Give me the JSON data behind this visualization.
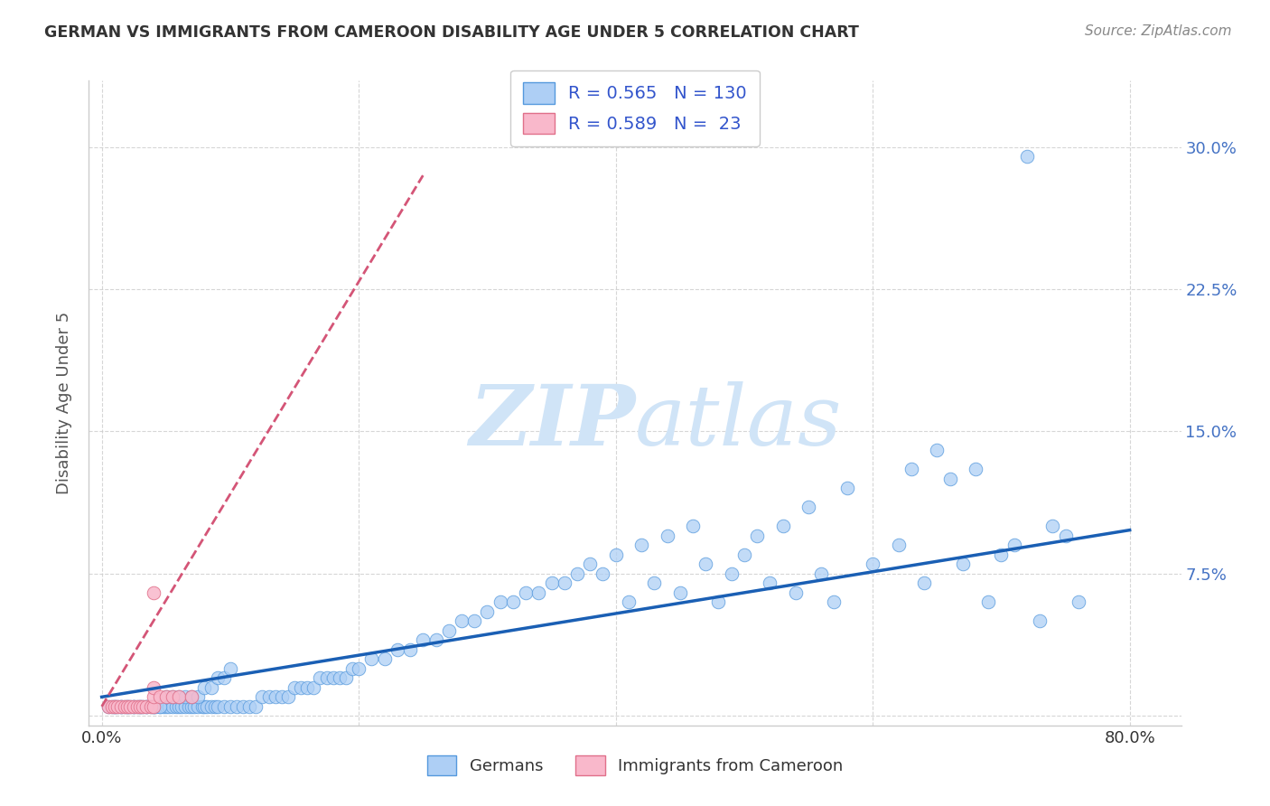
{
  "title": "GERMAN VS IMMIGRANTS FROM CAMEROON DISABILITY AGE UNDER 5 CORRELATION CHART",
  "source": "Source: ZipAtlas.com",
  "ylabel": "Disability Age Under 5",
  "xlim": [
    -0.01,
    0.84
  ],
  "ylim": [
    -0.005,
    0.335
  ],
  "xticks": [
    0.0,
    0.2,
    0.4,
    0.6,
    0.8
  ],
  "xticklabels": [
    "0.0%",
    "",
    "",
    "",
    "80.0%"
  ],
  "yticks": [
    0.0,
    0.075,
    0.15,
    0.225,
    0.3
  ],
  "yticklabels": [
    "",
    "7.5%",
    "15.0%",
    "22.5%",
    "30.0%"
  ],
  "german_R": 0.565,
  "german_N": 130,
  "cameroon_R": 0.589,
  "cameroon_N": 23,
  "german_color": "#aecff5",
  "german_edge_color": "#5599dd",
  "german_line_color": "#1a5fb4",
  "cameroon_color": "#f9b8cb",
  "cameroon_edge_color": "#e0708a",
  "cameroon_line_color": "#d45577",
  "watermark_color": "#d0e4f7",
  "background_color": "#ffffff",
  "grid_color": "#cccccc",
  "legend_text_color": "#3355cc",
  "title_color": "#333333",
  "source_color": "#888888",
  "ylabel_color": "#555555",
  "german_x": [
    0.005,
    0.008,
    0.01,
    0.012,
    0.015,
    0.018,
    0.02,
    0.022,
    0.025,
    0.028,
    0.03,
    0.032,
    0.035,
    0.038,
    0.04,
    0.042,
    0.045,
    0.048,
    0.05,
    0.052,
    0.055,
    0.058,
    0.06,
    0.062,
    0.065,
    0.068,
    0.07,
    0.072,
    0.075,
    0.078,
    0.08,
    0.082,
    0.085,
    0.088,
    0.09,
    0.095,
    0.1,
    0.105,
    0.11,
    0.115,
    0.12,
    0.125,
    0.13,
    0.135,
    0.14,
    0.145,
    0.15,
    0.155,
    0.16,
    0.165,
    0.17,
    0.175,
    0.18,
    0.185,
    0.19,
    0.195,
    0.2,
    0.21,
    0.22,
    0.23,
    0.24,
    0.25,
    0.26,
    0.27,
    0.28,
    0.29,
    0.3,
    0.31,
    0.32,
    0.33,
    0.34,
    0.35,
    0.36,
    0.37,
    0.38,
    0.39,
    0.4,
    0.41,
    0.42,
    0.43,
    0.44,
    0.45,
    0.46,
    0.47,
    0.48,
    0.49,
    0.5,
    0.51,
    0.52,
    0.53,
    0.54,
    0.55,
    0.56,
    0.57,
    0.58,
    0.6,
    0.62,
    0.63,
    0.64,
    0.65,
    0.66,
    0.67,
    0.68,
    0.69,
    0.7,
    0.71,
    0.72,
    0.73,
    0.74,
    0.75,
    0.76,
    0.01,
    0.015,
    0.02,
    0.025,
    0.03,
    0.035,
    0.04,
    0.045,
    0.05,
    0.055,
    0.06,
    0.065,
    0.07,
    0.075,
    0.08,
    0.085,
    0.09,
    0.095,
    0.1
  ],
  "german_y": [
    0.005,
    0.005,
    0.005,
    0.005,
    0.005,
    0.005,
    0.005,
    0.005,
    0.005,
    0.005,
    0.005,
    0.005,
    0.005,
    0.005,
    0.005,
    0.005,
    0.005,
    0.005,
    0.005,
    0.005,
    0.005,
    0.005,
    0.005,
    0.005,
    0.005,
    0.005,
    0.005,
    0.005,
    0.005,
    0.005,
    0.005,
    0.005,
    0.005,
    0.005,
    0.005,
    0.005,
    0.005,
    0.005,
    0.005,
    0.005,
    0.005,
    0.01,
    0.01,
    0.01,
    0.01,
    0.01,
    0.015,
    0.015,
    0.015,
    0.015,
    0.02,
    0.02,
    0.02,
    0.02,
    0.02,
    0.025,
    0.025,
    0.03,
    0.03,
    0.035,
    0.035,
    0.04,
    0.04,
    0.045,
    0.05,
    0.05,
    0.055,
    0.06,
    0.06,
    0.065,
    0.065,
    0.07,
    0.07,
    0.075,
    0.08,
    0.075,
    0.085,
    0.06,
    0.09,
    0.07,
    0.095,
    0.065,
    0.1,
    0.08,
    0.06,
    0.075,
    0.085,
    0.095,
    0.07,
    0.1,
    0.065,
    0.11,
    0.075,
    0.06,
    0.12,
    0.08,
    0.09,
    0.13,
    0.07,
    0.14,
    0.125,
    0.08,
    0.13,
    0.06,
    0.085,
    0.09,
    0.295,
    0.05,
    0.1,
    0.095,
    0.06,
    0.005,
    0.005,
    0.005,
    0.005,
    0.005,
    0.005,
    0.005,
    0.005,
    0.01,
    0.01,
    0.01,
    0.01,
    0.01,
    0.01,
    0.015,
    0.015,
    0.02,
    0.02,
    0.025
  ],
  "cameroon_x": [
    0.005,
    0.008,
    0.01,
    0.012,
    0.015,
    0.018,
    0.02,
    0.022,
    0.025,
    0.028,
    0.03,
    0.032,
    0.035,
    0.038,
    0.04,
    0.04,
    0.04,
    0.045,
    0.05,
    0.055,
    0.06,
    0.07,
    0.04
  ],
  "cameroon_y": [
    0.005,
    0.005,
    0.005,
    0.005,
    0.005,
    0.005,
    0.005,
    0.005,
    0.005,
    0.005,
    0.005,
    0.005,
    0.005,
    0.005,
    0.005,
    0.01,
    0.015,
    0.01,
    0.01,
    0.01,
    0.01,
    0.01,
    0.065
  ],
  "german_line_x": [
    0.0,
    0.8
  ],
  "german_line_y": [
    0.01,
    0.098
  ],
  "cameroon_line_x": [
    0.0,
    0.25
  ],
  "cameroon_line_y": [
    0.005,
    0.285
  ]
}
